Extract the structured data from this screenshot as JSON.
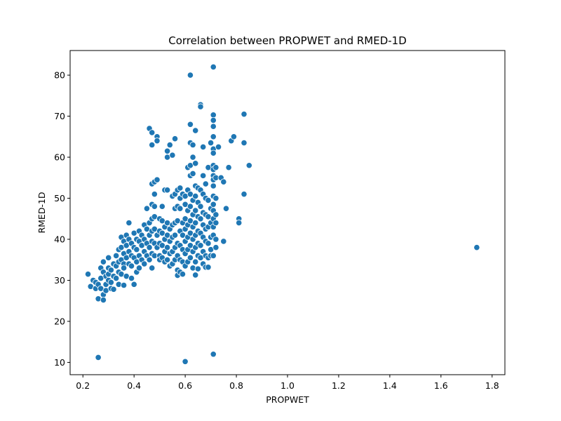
{
  "chart_data": {
    "type": "scatter",
    "title": "Correlation between PROPWET and RMED-1D",
    "xlabel": "PROPWET",
    "ylabel": "RMED-1D",
    "xlim": [
      0.15,
      1.85
    ],
    "ylim": [
      7,
      86
    ],
    "xticks": [
      "0.2",
      "0.4",
      "0.6",
      "0.8",
      "1.0",
      "1.2",
      "1.4",
      "1.6",
      "1.8"
    ],
    "yticks": [
      "10",
      "20",
      "30",
      "40",
      "50",
      "60",
      "70",
      "80"
    ],
    "grid": false,
    "legend": "none",
    "marker_color": "#1f77b4",
    "points": [
      [
        0.22,
        31.5
      ],
      [
        0.23,
        28.5
      ],
      [
        0.24,
        30.0
      ],
      [
        0.25,
        29.5
      ],
      [
        0.25,
        28.0
      ],
      [
        0.26,
        29.0
      ],
      [
        0.26,
        25.5
      ],
      [
        0.27,
        30.5
      ],
      [
        0.27,
        33.0
      ],
      [
        0.27,
        28.0
      ],
      [
        0.28,
        32.0
      ],
      [
        0.28,
        34.5
      ],
      [
        0.28,
        26.5
      ],
      [
        0.28,
        25.2
      ],
      [
        0.29,
        31.0
      ],
      [
        0.29,
        29.0
      ],
      [
        0.29,
        27.5
      ],
      [
        0.3,
        33.0
      ],
      [
        0.3,
        35.5
      ],
      [
        0.3,
        30.0
      ],
      [
        0.3,
        31.5
      ],
      [
        0.31,
        28.0
      ],
      [
        0.31,
        29.5
      ],
      [
        0.31,
        32.5
      ],
      [
        0.32,
        34.0
      ],
      [
        0.32,
        31.0
      ],
      [
        0.32,
        27.8
      ],
      [
        0.33,
        33.5
      ],
      [
        0.33,
        36.0
      ],
      [
        0.33,
        30.5
      ],
      [
        0.34,
        37.5
      ],
      [
        0.34,
        34.5
      ],
      [
        0.34,
        32.0
      ],
      [
        0.34,
        29.0
      ],
      [
        0.35,
        40.5
      ],
      [
        0.35,
        38.0
      ],
      [
        0.35,
        35.0
      ],
      [
        0.35,
        31.5
      ],
      [
        0.36,
        39.5
      ],
      [
        0.36,
        36.5
      ],
      [
        0.36,
        34.0
      ],
      [
        0.36,
        33.0
      ],
      [
        0.36,
        28.8
      ],
      [
        0.37,
        41.0
      ],
      [
        0.37,
        38.5
      ],
      [
        0.37,
        35.5
      ],
      [
        0.37,
        31.0
      ],
      [
        0.38,
        40.0
      ],
      [
        0.38,
        37.0
      ],
      [
        0.38,
        34.0
      ],
      [
        0.38,
        44.0
      ],
      [
        0.39,
        39.0
      ],
      [
        0.39,
        36.0
      ],
      [
        0.39,
        33.5
      ],
      [
        0.39,
        30.5
      ],
      [
        0.4,
        41.5
      ],
      [
        0.4,
        38.0
      ],
      [
        0.4,
        35.5
      ],
      [
        0.4,
        29.0
      ],
      [
        0.41,
        40.0
      ],
      [
        0.41,
        37.5
      ],
      [
        0.41,
        34.5
      ],
      [
        0.41,
        32.0
      ],
      [
        0.42,
        39.5
      ],
      [
        0.42,
        42.0
      ],
      [
        0.42,
        36.0
      ],
      [
        0.42,
        33.0
      ],
      [
        0.43,
        41.0
      ],
      [
        0.43,
        38.5
      ],
      [
        0.43,
        35.0
      ],
      [
        0.44,
        43.5
      ],
      [
        0.44,
        40.0
      ],
      [
        0.44,
        37.0
      ],
      [
        0.44,
        34.0
      ],
      [
        0.45,
        42.5
      ],
      [
        0.45,
        39.0
      ],
      [
        0.45,
        36.0
      ],
      [
        0.45,
        47.5
      ],
      [
        0.46,
        44.0
      ],
      [
        0.46,
        41.0
      ],
      [
        0.46,
        38.0
      ],
      [
        0.46,
        35.0
      ],
      [
        0.46,
        67.0
      ],
      [
        0.47,
        45.0
      ],
      [
        0.47,
        42.0
      ],
      [
        0.47,
        39.5
      ],
      [
        0.47,
        36.5
      ],
      [
        0.47,
        33.0
      ],
      [
        0.47,
        66.0
      ],
      [
        0.47,
        63.0
      ],
      [
        0.47,
        53.5
      ],
      [
        0.47,
        48.5
      ],
      [
        0.48,
        54.0
      ],
      [
        0.48,
        51.0
      ],
      [
        0.48,
        48.0
      ],
      [
        0.48,
        45.5
      ],
      [
        0.48,
        42.5
      ],
      [
        0.48,
        39.0
      ],
      [
        0.48,
        36.0
      ],
      [
        0.49,
        65.0
      ],
      [
        0.49,
        64.0
      ],
      [
        0.49,
        54.5
      ],
      [
        0.49,
        41.0
      ],
      [
        0.49,
        38.0
      ],
      [
        0.5,
        45.0
      ],
      [
        0.5,
        42.0
      ],
      [
        0.5,
        39.0
      ],
      [
        0.5,
        36.0
      ],
      [
        0.5,
        35.0
      ],
      [
        0.51,
        48.0
      ],
      [
        0.51,
        44.5
      ],
      [
        0.51,
        41.5
      ],
      [
        0.51,
        38.5
      ],
      [
        0.51,
        35.5
      ],
      [
        0.52,
        52.0
      ],
      [
        0.52,
        43.0
      ],
      [
        0.52,
        40.0
      ],
      [
        0.52,
        37.0
      ],
      [
        0.52,
        34.5
      ],
      [
        0.53,
        61.5
      ],
      [
        0.53,
        60.0
      ],
      [
        0.53,
        52.0
      ],
      [
        0.53,
        44.0
      ],
      [
        0.53,
        41.0
      ],
      [
        0.53,
        38.0
      ],
      [
        0.53,
        35.0
      ],
      [
        0.54,
        63.0
      ],
      [
        0.54,
        42.5
      ],
      [
        0.54,
        39.5
      ],
      [
        0.54,
        36.5
      ],
      [
        0.54,
        33.5
      ],
      [
        0.55,
        60.5
      ],
      [
        0.55,
        50.5
      ],
      [
        0.55,
        43.5
      ],
      [
        0.55,
        40.5
      ],
      [
        0.55,
        37.0
      ],
      [
        0.55,
        34.0
      ],
      [
        0.56,
        64.5
      ],
      [
        0.56,
        51.0
      ],
      [
        0.56,
        47.5
      ],
      [
        0.56,
        44.0
      ],
      [
        0.56,
        41.0
      ],
      [
        0.56,
        38.0
      ],
      [
        0.56,
        35.0
      ],
      [
        0.57,
        52.0
      ],
      [
        0.57,
        48.0
      ],
      [
        0.57,
        44.5
      ],
      [
        0.57,
        39.0
      ],
      [
        0.57,
        36.0
      ],
      [
        0.57,
        32.5
      ],
      [
        0.57,
        31.2
      ],
      [
        0.58,
        52.5
      ],
      [
        0.58,
        50.0
      ],
      [
        0.58,
        47.5
      ],
      [
        0.58,
        42.0
      ],
      [
        0.58,
        38.5
      ],
      [
        0.58,
        35.0
      ],
      [
        0.58,
        32.0
      ],
      [
        0.59,
        51.0
      ],
      [
        0.59,
        44.0
      ],
      [
        0.59,
        41.0
      ],
      [
        0.59,
        37.5
      ],
      [
        0.59,
        34.5
      ],
      [
        0.59,
        31.5
      ],
      [
        0.6,
        50.5
      ],
      [
        0.6,
        48.5
      ],
      [
        0.6,
        45.0
      ],
      [
        0.6,
        42.5
      ],
      [
        0.6,
        39.5
      ],
      [
        0.6,
        36.5
      ],
      [
        0.6,
        33.5
      ],
      [
        0.6,
        10.2
      ],
      [
        0.61,
        57.5
      ],
      [
        0.61,
        52.0
      ],
      [
        0.61,
        47.0
      ],
      [
        0.61,
        43.5
      ],
      [
        0.61,
        40.5
      ],
      [
        0.61,
        37.5
      ],
      [
        0.61,
        34.5
      ],
      [
        0.62,
        80.0
      ],
      [
        0.62,
        68.0
      ],
      [
        0.62,
        63.5
      ],
      [
        0.62,
        58.0
      ],
      [
        0.62,
        55.5
      ],
      [
        0.62,
        51.0
      ],
      [
        0.62,
        48.0
      ],
      [
        0.62,
        44.5
      ],
      [
        0.62,
        41.5
      ],
      [
        0.62,
        38.5
      ],
      [
        0.62,
        35.5
      ],
      [
        0.63,
        63.0
      ],
      [
        0.63,
        60.0
      ],
      [
        0.63,
        56.0
      ],
      [
        0.63,
        49.5
      ],
      [
        0.63,
        46.0
      ],
      [
        0.63,
        43.0
      ],
      [
        0.63,
        40.0
      ],
      [
        0.63,
        37.0
      ],
      [
        0.63,
        33.0
      ],
      [
        0.64,
        66.5
      ],
      [
        0.64,
        58.5
      ],
      [
        0.64,
        53.0
      ],
      [
        0.64,
        50.5
      ],
      [
        0.64,
        47.0
      ],
      [
        0.64,
        44.0
      ],
      [
        0.64,
        41.0
      ],
      [
        0.64,
        38.0
      ],
      [
        0.64,
        34.5
      ],
      [
        0.64,
        31.3
      ],
      [
        0.65,
        52.5
      ],
      [
        0.65,
        49.0
      ],
      [
        0.65,
        45.5
      ],
      [
        0.65,
        42.0
      ],
      [
        0.65,
        39.0
      ],
      [
        0.65,
        36.0
      ],
      [
        0.65,
        32.8
      ],
      [
        0.66,
        72.8
      ],
      [
        0.66,
        72.3
      ],
      [
        0.66,
        52.0
      ],
      [
        0.66,
        48.0
      ],
      [
        0.66,
        45.0
      ],
      [
        0.66,
        41.5
      ],
      [
        0.66,
        38.5
      ],
      [
        0.66,
        35.5
      ],
      [
        0.67,
        62.5
      ],
      [
        0.67,
        55.5
      ],
      [
        0.67,
        51.0
      ],
      [
        0.67,
        46.5
      ],
      [
        0.67,
        43.5
      ],
      [
        0.67,
        40.5
      ],
      [
        0.67,
        37.0
      ],
      [
        0.67,
        34.0
      ],
      [
        0.68,
        53.5
      ],
      [
        0.68,
        50.0
      ],
      [
        0.68,
        46.0
      ],
      [
        0.68,
        42.5
      ],
      [
        0.68,
        39.5
      ],
      [
        0.68,
        36.0
      ],
      [
        0.68,
        33.2
      ],
      [
        0.69,
        57.5
      ],
      [
        0.69,
        49.5
      ],
      [
        0.69,
        45.5
      ],
      [
        0.69,
        43.0
      ],
      [
        0.69,
        39.0
      ],
      [
        0.69,
        35.5
      ],
      [
        0.69,
        33.2
      ],
      [
        0.7,
        63.5
      ],
      [
        0.7,
        47.5
      ],
      [
        0.7,
        44.0
      ],
      [
        0.7,
        40.5
      ],
      [
        0.7,
        37.5
      ],
      [
        0.7,
        36.0
      ],
      [
        0.71,
        82.0
      ],
      [
        0.71,
        70.3
      ],
      [
        0.71,
        69.0
      ],
      [
        0.71,
        67.5
      ],
      [
        0.71,
        65.0
      ],
      [
        0.71,
        62.0
      ],
      [
        0.71,
        61.0
      ],
      [
        0.71,
        58.0
      ],
      [
        0.71,
        57.0
      ],
      [
        0.71,
        55.5
      ],
      [
        0.71,
        54.5
      ],
      [
        0.71,
        53.0
      ],
      [
        0.71,
        50.5
      ],
      [
        0.71,
        48.5
      ],
      [
        0.71,
        47.0
      ],
      [
        0.71,
        45.0
      ],
      [
        0.71,
        43.0
      ],
      [
        0.71,
        41.0
      ],
      [
        0.71,
        36.0
      ],
      [
        0.71,
        12.0
      ],
      [
        0.72,
        57.5
      ],
      [
        0.72,
        55.0
      ],
      [
        0.72,
        50.0
      ],
      [
        0.72,
        46.0
      ],
      [
        0.72,
        44.0
      ],
      [
        0.72,
        40.0
      ],
      [
        0.72,
        38.0
      ],
      [
        0.73,
        62.5
      ],
      [
        0.74,
        55.0
      ],
      [
        0.75,
        39.5
      ],
      [
        0.75,
        54.0
      ],
      [
        0.76,
        47.5
      ],
      [
        0.77,
        57.5
      ],
      [
        0.78,
        64.0
      ],
      [
        0.79,
        65.0
      ],
      [
        0.81,
        45.0
      ],
      [
        0.81,
        44.0
      ],
      [
        0.83,
        70.5
      ],
      [
        0.83,
        63.5
      ],
      [
        0.83,
        51.0
      ],
      [
        0.85,
        58.0
      ],
      [
        0.26,
        11.2
      ],
      [
        1.74,
        38.0
      ]
    ]
  }
}
